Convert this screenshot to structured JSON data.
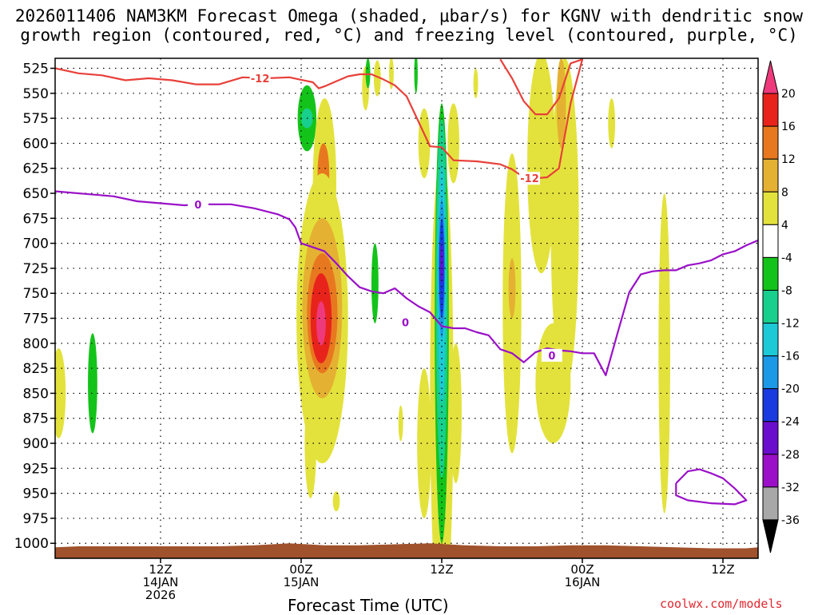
{
  "chart_data": {
    "type": "time-height cross-section",
    "title_line1": "2026011406 NAM3KM Forecast Omega (shaded, μbar/s) for KGNV with dendritic snow",
    "title_line2": "growth region (contoured, red, °C) and freezing level (contoured, purple, °C)",
    "xlabel": "Forecast Time (UTC)",
    "credit": "coolwx.com/models",
    "x_units": "hours since 2026-01-14 00Z",
    "xlim": [
      3,
      63
    ],
    "x_ticks": [
      {
        "x": 12,
        "lines": [
          "12Z",
          "14JAN",
          "2026"
        ]
      },
      {
        "x": 24,
        "lines": [
          "00Z",
          "15JAN"
        ]
      },
      {
        "x": 36,
        "lines": [
          "12Z"
        ]
      },
      {
        "x": 48,
        "lines": [
          "00Z",
          "16JAN"
        ]
      },
      {
        "x": 60,
        "lines": [
          "12Z"
        ]
      }
    ],
    "y_units": "hPa",
    "ylim": [
      1015,
      515
    ],
    "y_ticks": [
      525,
      550,
      575,
      600,
      625,
      650,
      675,
      700,
      725,
      750,
      775,
      800,
      825,
      850,
      875,
      900,
      925,
      950,
      975,
      1000
    ],
    "grid": true,
    "colorbar": {
      "labels": [
        "20",
        "16",
        "12",
        "8",
        "4",
        "-4",
        "-8",
        "-12",
        "-16",
        "-20",
        "-24",
        "-28",
        "-32",
        "-36"
      ],
      "colors": [
        "#ee3a7c",
        "#e8231c",
        "#e8781f",
        "#e5b132",
        "#e3e23c",
        "#ffffff",
        "#14c31a",
        "#18cf8e",
        "#1ec9d7",
        "#1c99e6",
        "#1a3be0",
        "#6a0dcc",
        "#9c0fc8",
        "#a8a8a8",
        "#000000"
      ]
    },
    "contours": [
      {
        "name": "-12",
        "label": "-12",
        "color": "#e8403a",
        "points": [
          [
            3,
            525
          ],
          [
            5,
            530
          ],
          [
            7,
            532
          ],
          [
            9,
            537
          ],
          [
            11,
            535
          ],
          [
            13,
            537
          ],
          [
            15,
            541
          ],
          [
            17,
            541
          ],
          [
            19,
            534
          ],
          [
            21,
            535
          ],
          [
            23,
            534
          ],
          [
            25,
            539
          ],
          [
            25.5,
            545
          ],
          [
            26,
            543
          ],
          [
            27,
            538
          ],
          [
            28,
            533
          ],
          [
            29,
            531
          ],
          [
            30,
            531
          ],
          [
            31,
            536
          ],
          [
            32,
            542
          ],
          [
            33,
            553
          ],
          [
            34,
            578
          ],
          [
            35,
            603
          ],
          [
            36,
            604
          ],
          [
            37,
            617
          ],
          [
            39,
            618
          ],
          [
            41,
            621
          ],
          [
            42,
            626
          ],
          [
            43,
            634
          ],
          [
            44,
            635
          ],
          [
            45,
            634
          ],
          [
            46,
            625
          ],
          [
            47,
            560
          ],
          [
            48,
            516
          ]
        ]
      },
      {
        "name": "-12",
        "label": "-12",
        "color": "#e8403a",
        "points": [
          [
            41,
            516
          ],
          [
            42,
            535
          ],
          [
            43,
            558
          ],
          [
            44,
            571
          ],
          [
            45,
            571
          ],
          [
            46,
            555
          ],
          [
            47,
            520
          ],
          [
            48,
            516
          ]
        ]
      },
      {
        "name": "0",
        "label": "0",
        "color": "#9a10c8",
        "points": [
          [
            3,
            648
          ],
          [
            6,
            651
          ],
          [
            8,
            653
          ],
          [
            10,
            658
          ],
          [
            12,
            660
          ],
          [
            14,
            662
          ],
          [
            16,
            661
          ],
          [
            18,
            661
          ],
          [
            20,
            665
          ],
          [
            22,
            671
          ],
          [
            23,
            676
          ],
          [
            23.5,
            684
          ],
          [
            24,
            700
          ],
          [
            25,
            704
          ],
          [
            26,
            708
          ],
          [
            27,
            720
          ],
          [
            28,
            733
          ],
          [
            29,
            744
          ],
          [
            30,
            748
          ],
          [
            31,
            750
          ],
          [
            32,
            745
          ],
          [
            33,
            755
          ],
          [
            34,
            763
          ],
          [
            35,
            769
          ],
          [
            36,
            783
          ],
          [
            37,
            785
          ],
          [
            38,
            785
          ],
          [
            39,
            789
          ],
          [
            40,
            792
          ],
          [
            41,
            806
          ],
          [
            42,
            810
          ],
          [
            43,
            819
          ],
          [
            44,
            809
          ],
          [
            45,
            805
          ],
          [
            46,
            807
          ],
          [
            47,
            808
          ],
          [
            48,
            810
          ],
          [
            49,
            810
          ],
          [
            50,
            832
          ],
          [
            51,
            790
          ],
          [
            52,
            749
          ],
          [
            53,
            731
          ],
          [
            54,
            728
          ],
          [
            55,
            727
          ],
          [
            56,
            727
          ],
          [
            57,
            722
          ],
          [
            58,
            720
          ],
          [
            59,
            717
          ],
          [
            60,
            711
          ],
          [
            61,
            708
          ],
          [
            62,
            702
          ],
          [
            63,
            697
          ]
        ]
      },
      {
        "name": "0",
        "label": "",
        "color": "#9a10c8",
        "points": [
          [
            56,
            940
          ],
          [
            57,
            928
          ],
          [
            58,
            926
          ],
          [
            59,
            930
          ],
          [
            60,
            935
          ],
          [
            61,
            945
          ],
          [
            62,
            957
          ],
          [
            61,
            961
          ],
          [
            59,
            960
          ],
          [
            57,
            957
          ],
          [
            56,
            952
          ],
          [
            56,
            940
          ]
        ]
      }
    ],
    "omega_cells": [
      {
        "name": "green-1",
        "level": "-8",
        "x": 24.5,
        "p": 575,
        "dx": 0.8,
        "dp": 33
      },
      {
        "name": "cyan-1",
        "level": "-12",
        "x": 24.5,
        "p": 575,
        "dx": 0.5,
        "dp": 10
      },
      {
        "name": "yellow-1",
        "level": "4",
        "x": 26,
        "p": 640,
        "dx": 1,
        "dp": 85
      },
      {
        "name": "orange-1",
        "level": "12",
        "x": 25.9,
        "p": 630,
        "dx": 0.5,
        "dp": 30
      },
      {
        "name": "yellow-2",
        "level": "4",
        "x": 25.8,
        "p": 775,
        "dx": 2.2,
        "dp": 145
      },
      {
        "name": "gold-2",
        "level": "8",
        "x": 25.8,
        "p": 765,
        "dx": 1.7,
        "dp": 90
      },
      {
        "name": "orange-2",
        "level": "12",
        "x": 25.8,
        "p": 770,
        "dx": 1.3,
        "dp": 60
      },
      {
        "name": "red-2",
        "level": "16",
        "x": 25.7,
        "p": 775,
        "dx": 0.9,
        "dp": 45
      },
      {
        "name": "pink-2",
        "level": "20",
        "x": 25.7,
        "p": 780,
        "dx": 0.4,
        "dp": 22
      },
      {
        "name": "yellow-3",
        "level": "4",
        "x": 3.3,
        "p": 850,
        "dx": 0.6,
        "dp": 45
      },
      {
        "name": "green-3",
        "level": "-8",
        "x": 6.2,
        "p": 840,
        "dx": 0.4,
        "dp": 50
      },
      {
        "name": "green-4",
        "level": "-8",
        "x": 30.3,
        "p": 740,
        "dx": 0.3,
        "dp": 40
      },
      {
        "name": "yellow-5",
        "level": "4",
        "x": 24.8,
        "p": 900,
        "dx": 0.5,
        "dp": 55
      },
      {
        "name": "yellow-6",
        "level": "4",
        "x": 27,
        "p": 958,
        "dx": 0.3,
        "dp": 10
      },
      {
        "name": "yellow-7",
        "level": "4",
        "x": 29.5,
        "p": 545,
        "dx": 0.3,
        "dp": 22
      },
      {
        "name": "yellow-8",
        "level": "4",
        "x": 32.5,
        "p": 880,
        "dx": 0.2,
        "dp": 18
      },
      {
        "name": "yellow-9",
        "level": "4",
        "x": 34.5,
        "p": 600,
        "dx": 0.5,
        "dp": 35
      },
      {
        "name": "yellow-10",
        "level": "4",
        "x": 34.5,
        "p": 900,
        "dx": 0.6,
        "dp": 75
      },
      {
        "name": "yellow-11",
        "level": "4",
        "x": 37,
        "p": 600,
        "dx": 0.5,
        "dp": 40
      },
      {
        "name": "yellow-12",
        "level": "4",
        "x": 37.2,
        "p": 870,
        "dx": 0.5,
        "dp": 70
      },
      {
        "name": "yellow-13",
        "level": "4",
        "x": 42,
        "p": 760,
        "dx": 0.8,
        "dp": 150
      },
      {
        "name": "gold-13",
        "level": "8",
        "x": 42,
        "p": 745,
        "dx": 0.3,
        "dp": 30
      },
      {
        "name": "yellow-14",
        "level": "4",
        "x": 44.5,
        "p": 620,
        "dx": 1.2,
        "dp": 110
      },
      {
        "name": "yellow-15",
        "level": "4",
        "x": 46.5,
        "p": 680,
        "dx": 1.2,
        "dp": 165
      },
      {
        "name": "gold-15",
        "level": "8",
        "x": 46.2,
        "p": 560,
        "dx": 0.4,
        "dp": 45
      },
      {
        "name": "yellow-16",
        "level": "4",
        "x": 45.5,
        "p": 840,
        "dx": 1.5,
        "dp": 60
      },
      {
        "name": "yellow-17",
        "level": "4",
        "x": 50.5,
        "p": 580,
        "dx": 0.3,
        "dp": 25
      },
      {
        "name": "yellow-18",
        "level": "4",
        "x": 55,
        "p": 810,
        "dx": 0.5,
        "dp": 160
      },
      {
        "name": "yellow-19",
        "level": "4",
        "x": 38.9,
        "p": 540,
        "dx": 0.2,
        "dp": 15
      },
      {
        "name": "yellow-20",
        "level": "4",
        "x": 30.5,
        "p": 535,
        "dx": 0.3,
        "dp": 18
      },
      {
        "name": "green-21",
        "level": "-8",
        "x": 29.7,
        "p": 530,
        "dx": 0.2,
        "dp": 15
      },
      {
        "name": "green-22",
        "level": "-8",
        "x": 33.8,
        "p": 530,
        "dx": 0.15,
        "dp": 20
      },
      {
        "name": "yellow-23",
        "level": "4",
        "x": 31.7,
        "p": 530,
        "dx": 0.2,
        "dp": 16
      },
      {
        "name": "yellow-24",
        "level": "4",
        "x": 36,
        "p": 850,
        "dx": 1,
        "dp": 240
      },
      {
        "name": "green-24",
        "level": "-8",
        "x": 36,
        "p": 780,
        "dx": 0.6,
        "dp": 220
      },
      {
        "name": "cyan-24",
        "level": "-12",
        "x": 36,
        "p": 755,
        "dx": 0.5,
        "dp": 180
      },
      {
        "name": "blue-24",
        "level": "-16",
        "x": 36,
        "p": 740,
        "dx": 0.35,
        "dp": 120
      },
      {
        "name": "navy-24",
        "level": "-20",
        "x": 36,
        "p": 725,
        "dx": 0.28,
        "dp": 70
      },
      {
        "name": "purple-24",
        "level": "-24",
        "x": 36,
        "p": 725,
        "dx": 0.22,
        "dp": 50
      },
      {
        "name": "violet-24",
        "level": "-28",
        "x": 36,
        "p": 720,
        "dx": 0.12,
        "dp": 20
      }
    ],
    "terrain": {
      "color": "#a0522d",
      "points": [
        [
          3,
          1004
        ],
        [
          5,
          1003
        ],
        [
          8,
          1003
        ],
        [
          11,
          1003
        ],
        [
          14,
          1003
        ],
        [
          17,
          1003
        ],
        [
          20,
          1002
        ],
        [
          23,
          1000
        ],
        [
          26,
          1002
        ],
        [
          29,
          1002
        ],
        [
          32,
          1001
        ],
        [
          35,
          1000
        ],
        [
          38,
          1002
        ],
        [
          41,
          1003
        ],
        [
          44,
          1003
        ],
        [
          47,
          1002
        ],
        [
          50,
          1002
        ],
        [
          53,
          1003
        ],
        [
          56,
          1004
        ],
        [
          59,
          1005
        ],
        [
          62,
          1005
        ],
        [
          63,
          1004
        ]
      ]
    }
  }
}
